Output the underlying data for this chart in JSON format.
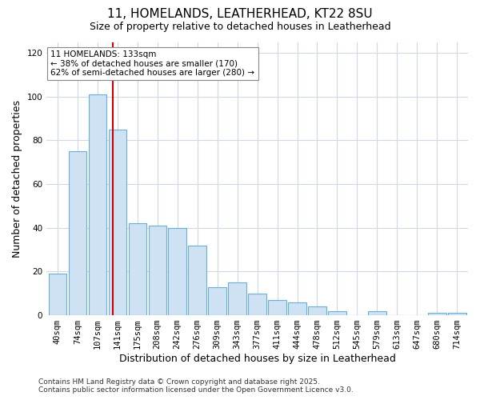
{
  "title1": "11, HOMELANDS, LEATHERHEAD, KT22 8SU",
  "title2": "Size of property relative to detached houses in Leatherhead",
  "xlabel": "Distribution of detached houses by size in Leatherhead",
  "ylabel": "Number of detached properties",
  "categories": [
    "40sqm",
    "74sqm",
    "107sqm",
    "141sqm",
    "175sqm",
    "208sqm",
    "242sqm",
    "276sqm",
    "309sqm",
    "343sqm",
    "377sqm",
    "411sqm",
    "444sqm",
    "478sqm",
    "512sqm",
    "545sqm",
    "579sqm",
    "613sqm",
    "647sqm",
    "680sqm",
    "714sqm"
  ],
  "values": [
    19,
    75,
    101,
    85,
    42,
    41,
    40,
    32,
    13,
    15,
    10,
    7,
    6,
    4,
    2,
    0,
    2,
    0,
    0,
    1,
    1
  ],
  "bar_color": "#cfe2f3",
  "bar_edge_color": "#6aafd6",
  "vline_position": 2.75,
  "vline_color": "#cc0000",
  "annotation_title": "11 HOMELANDS: 133sqm",
  "annotation_line1": "← 38% of detached houses are smaller (170)",
  "annotation_line2": "62% of semi-detached houses are larger (280) →",
  "ylim": [
    0,
    125
  ],
  "yticks": [
    0,
    20,
    40,
    60,
    80,
    100,
    120
  ],
  "footer1": "Contains HM Land Registry data © Crown copyright and database right 2025.",
  "footer2": "Contains public sector information licensed under the Open Government Licence v3.0.",
  "bg_color": "#ffffff",
  "grid_color": "#d0d8e8",
  "title1_fontsize": 11,
  "title2_fontsize": 9,
  "xlabel_fontsize": 9,
  "ylabel_fontsize": 9,
  "tick_fontsize": 7.5,
  "annot_fontsize": 7.5,
  "footer_fontsize": 6.5
}
